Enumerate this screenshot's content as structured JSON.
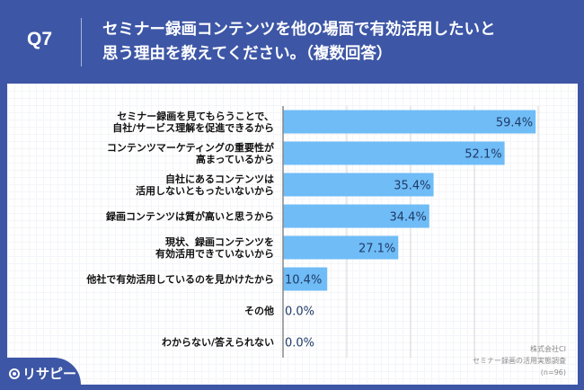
{
  "header": {
    "question_number": "Q7",
    "title": "セミナー録画コンテンツを他の場面で有効活用したいと\n思う理由を教えてください。（複数回答）"
  },
  "source": {
    "company": "株式会社CI",
    "survey": "セミナー録画の活用実態調査",
    "sample": "(n=96)"
  },
  "brand": {
    "name": "リサピー",
    "icon": "map-pin-icon"
  },
  "colors": {
    "header_bg": "#3d56a6",
    "bar": "#6fbcf7",
    "value_text": "#1f3b66"
  },
  "chart_data": {
    "type": "bar",
    "orientation": "horizontal",
    "title": "セミナー録画コンテンツを他の場面で有効活用したいと思う理由を教えてください。（複数回答）",
    "categories": [
      [
        "セミナー録画を見てもらうことで、",
        "自社/サービス理解を促進できるから"
      ],
      [
        "コンテンツマーケティングの重要性が",
        "高まっているから"
      ],
      [
        "自社にあるコンテンツは",
        "活用しないともったいないから"
      ],
      [
        "録画コンテンツは質が高いと思うから"
      ],
      [
        "現状、録画コンテンツを",
        "有効活用できていないから"
      ],
      [
        "他社で有効活用しているのを見かけたから"
      ],
      [
        "その他"
      ],
      [
        "わからない/答えられない"
      ]
    ],
    "values": [
      59.4,
      52.1,
      35.4,
      34.4,
      27.1,
      10.4,
      0.0,
      0.0
    ],
    "value_labels": [
      "59.4%",
      "52.1%",
      "35.4%",
      "34.4%",
      "27.1%",
      "10.4%",
      "0.0%",
      "0.0%"
    ],
    "unit": "%",
    "xlim": [
      0,
      60
    ],
    "grid_step": 15,
    "grid": true,
    "xlabel": "",
    "ylabel": ""
  }
}
